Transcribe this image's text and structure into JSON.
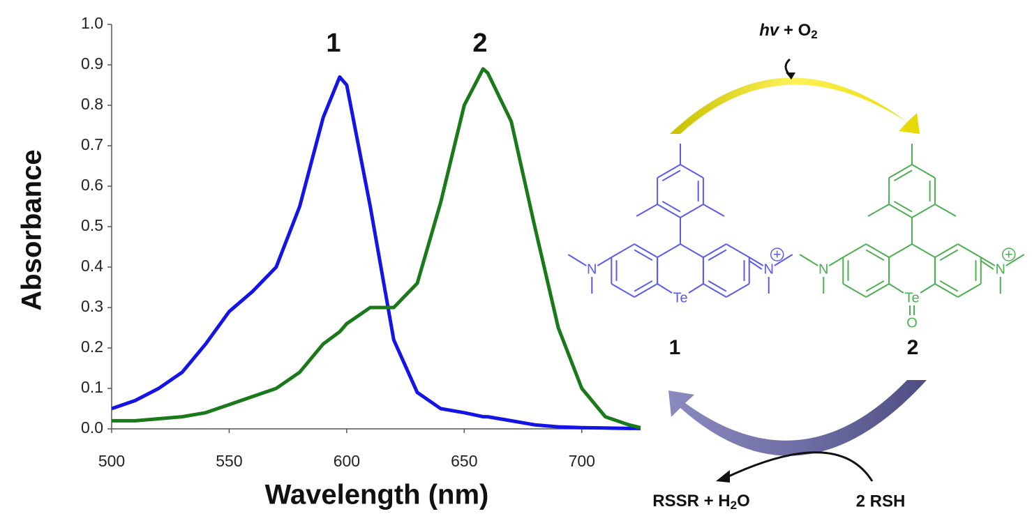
{
  "chart_data": {
    "type": "line",
    "x_label": "Wavelength (nm)",
    "y_label": "Absorbance",
    "annotations": [
      "1",
      "2"
    ],
    "x": [
      500,
      510,
      520,
      530,
      540,
      550,
      560,
      570,
      580,
      590,
      597,
      600,
      610,
      620,
      630,
      640,
      650,
      658,
      660,
      670,
      680,
      690,
      700,
      710,
      720,
      725
    ],
    "series": [
      {
        "name": "1",
        "color": "#1414e6",
        "values": [
          0.05,
          0.07,
          0.1,
          0.14,
          0.21,
          0.29,
          0.34,
          0.4,
          0.55,
          0.77,
          0.87,
          0.85,
          0.55,
          0.22,
          0.09,
          0.05,
          0.04,
          0.03,
          0.03,
          0.02,
          0.01,
          0.005,
          0.003,
          0.002,
          0.001,
          0.001
        ]
      },
      {
        "name": "2",
        "color": "#1a7a1a",
        "values": [
          0.02,
          0.02,
          0.025,
          0.03,
          0.04,
          0.06,
          0.08,
          0.1,
          0.14,
          0.21,
          0.24,
          0.26,
          0.3,
          0.3,
          0.36,
          0.56,
          0.8,
          0.89,
          0.88,
          0.76,
          0.5,
          0.25,
          0.1,
          0.03,
          0.01,
          0.003
        ]
      }
    ],
    "xlim": [
      500,
      725
    ],
    "xticks": [
      500,
      550,
      600,
      650,
      700
    ],
    "ylim": [
      0,
      1.0
    ],
    "yticks": [
      {
        "value": 0,
        "label": "0.0"
      },
      0.1,
      0.2,
      0.3,
      0.4,
      0.5,
      0.6,
      0.7,
      0.8,
      0.9,
      {
        "value": 1.0,
        "label": "1.0"
      }
    ],
    "grid": false
  },
  "diagram": {
    "top_reagent": {
      "light": "hv",
      "plus_o": " + O",
      "sub": "2"
    },
    "compound_1": {
      "label": "1",
      "te": "Te",
      "n_left": "N",
      "n_right": "N",
      "charge": "+"
    },
    "compound_2": {
      "label": "2",
      "te": "Te",
      "o": "O",
      "n_left": "N",
      "n_right": "N",
      "charge": "+"
    },
    "product": {
      "main": "RSSR + H",
      "sub": "2",
      "tail": "O"
    },
    "thiol": "2 RSH"
  }
}
